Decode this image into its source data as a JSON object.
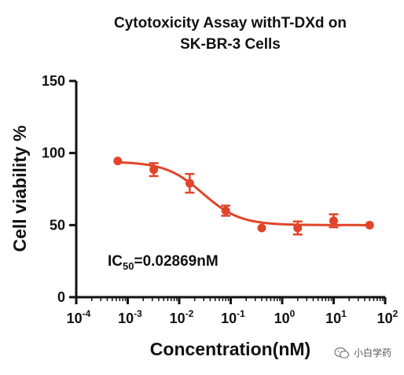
{
  "chart_data": {
    "type": "scatter",
    "title_lines": [
      "Cytotoxicity Assay withT-DXd on",
      "SK-BR-3 Cells"
    ],
    "xlabel": "Concentration(nM)",
    "ylabel": "Cell viability %",
    "x_scale": "log",
    "xlim": [
      0.0001,
      100
    ],
    "ylim": [
      0,
      150
    ],
    "x_ticks": [
      {
        "base": "10",
        "exp": "-4",
        "value": 0.0001
      },
      {
        "base": "10",
        "exp": "-3",
        "value": 0.001
      },
      {
        "base": "10",
        "exp": "-2",
        "value": 0.01
      },
      {
        "base": "10",
        "exp": "-1",
        "value": 0.1
      },
      {
        "base": "10",
        "exp": "0",
        "value": 1
      },
      {
        "base": "10",
        "exp": "1",
        "value": 10
      },
      {
        "base": "10",
        "exp": "2",
        "value": 100
      }
    ],
    "y_ticks": [
      "0",
      "50",
      "100",
      "150"
    ],
    "points": [
      {
        "x": 0.00064,
        "y": 94.5,
        "err": 0
      },
      {
        "x": 0.0032,
        "y": 88.5,
        "err": 4.5
      },
      {
        "x": 0.016,
        "y": 79.0,
        "err": 6.5
      },
      {
        "x": 0.08,
        "y": 60.0,
        "err": 3.5
      },
      {
        "x": 0.4,
        "y": 48.0,
        "err": 0
      },
      {
        "x": 2.0,
        "y": 48.0,
        "err": 4.5
      },
      {
        "x": 10.0,
        "y": 53.0,
        "err": 4.5
      },
      {
        "x": 50.0,
        "y": 50.0,
        "err": 0
      }
    ],
    "fit": {
      "model": "4PL",
      "top": 94,
      "bottom": 50,
      "ic50": 0.02869,
      "hill": 1.2
    },
    "annotation": {
      "prefix": "IC",
      "sub": "50",
      "suffix": "=0.02869nM"
    },
    "grid": false,
    "colors": {
      "series": "#e0452b",
      "axis": "#111111"
    }
  },
  "watermark": {
    "text": "小白学药",
    "icon": "wechat-icon"
  }
}
